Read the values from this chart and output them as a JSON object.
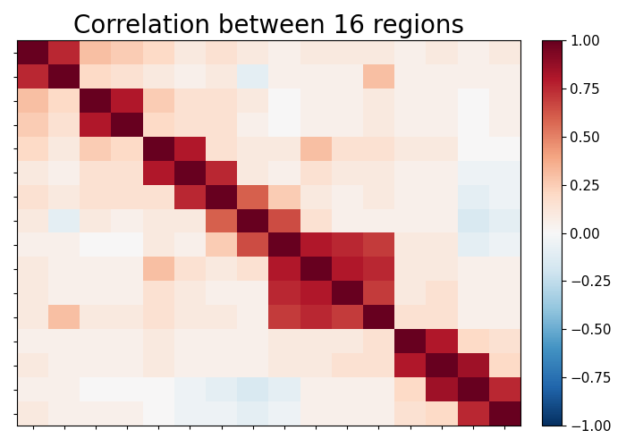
{
  "title": "Correlation between 16 regions",
  "title_fontsize": 20,
  "n_regions": 16,
  "cmap": "RdBu_r",
  "vmin": -1.0,
  "vmax": 1.0,
  "corr_matrix": [
    [
      1.0,
      0.75,
      0.3,
      0.25,
      0.2,
      0.1,
      0.15,
      0.1,
      0.05,
      0.1,
      0.1,
      0.1,
      0.05,
      0.1,
      0.05,
      0.1
    ],
    [
      0.75,
      1.0,
      0.2,
      0.15,
      0.1,
      0.05,
      0.1,
      -0.1,
      0.05,
      0.05,
      0.05,
      0.3,
      0.05,
      0.05,
      0.05,
      0.05
    ],
    [
      0.3,
      0.2,
      1.0,
      0.8,
      0.25,
      0.15,
      0.15,
      0.1,
      0.0,
      0.05,
      0.05,
      0.1,
      0.05,
      0.05,
      0.0,
      0.05
    ],
    [
      0.25,
      0.15,
      0.8,
      1.0,
      0.2,
      0.15,
      0.15,
      0.05,
      0.0,
      0.05,
      0.05,
      0.1,
      0.05,
      0.05,
      0.0,
      0.05
    ],
    [
      0.2,
      0.1,
      0.25,
      0.2,
      1.0,
      0.8,
      0.15,
      0.1,
      0.1,
      0.3,
      0.15,
      0.15,
      0.1,
      0.1,
      0.0,
      0.0
    ],
    [
      0.1,
      0.05,
      0.15,
      0.15,
      0.8,
      1.0,
      0.75,
      0.1,
      0.05,
      0.15,
      0.1,
      0.1,
      0.05,
      0.05,
      -0.05,
      -0.05
    ],
    [
      0.15,
      0.1,
      0.15,
      0.15,
      0.15,
      0.75,
      1.0,
      0.6,
      0.25,
      0.1,
      0.05,
      0.1,
      0.05,
      0.05,
      -0.1,
      -0.05
    ],
    [
      0.1,
      -0.1,
      0.1,
      0.05,
      0.1,
      0.1,
      0.6,
      1.0,
      0.65,
      0.15,
      0.05,
      0.05,
      0.05,
      0.05,
      -0.15,
      -0.1
    ],
    [
      0.05,
      0.05,
      0.0,
      0.0,
      0.1,
      0.05,
      0.25,
      0.65,
      1.0,
      0.8,
      0.75,
      0.7,
      0.1,
      0.1,
      -0.1,
      -0.05
    ],
    [
      0.1,
      0.05,
      0.05,
      0.05,
      0.3,
      0.15,
      0.1,
      0.15,
      0.8,
      1.0,
      0.8,
      0.75,
      0.1,
      0.1,
      0.05,
      0.05
    ],
    [
      0.1,
      0.05,
      0.05,
      0.05,
      0.15,
      0.1,
      0.05,
      0.05,
      0.75,
      0.8,
      1.0,
      0.7,
      0.1,
      0.15,
      0.05,
      0.05
    ],
    [
      0.1,
      0.3,
      0.1,
      0.1,
      0.15,
      0.1,
      0.1,
      0.05,
      0.7,
      0.75,
      0.7,
      1.0,
      0.15,
      0.15,
      0.05,
      0.05
    ],
    [
      0.05,
      0.05,
      0.05,
      0.05,
      0.1,
      0.05,
      0.05,
      0.05,
      0.1,
      0.1,
      0.1,
      0.15,
      1.0,
      0.8,
      0.2,
      0.15
    ],
    [
      0.1,
      0.05,
      0.05,
      0.05,
      0.1,
      0.05,
      0.05,
      0.05,
      0.1,
      0.1,
      0.15,
      0.15,
      0.8,
      1.0,
      0.85,
      0.2
    ],
    [
      0.05,
      0.05,
      0.0,
      0.0,
      0.0,
      -0.05,
      -0.1,
      -0.15,
      -0.1,
      0.05,
      0.05,
      0.05,
      0.2,
      0.85,
      1.0,
      0.75
    ],
    [
      0.1,
      0.05,
      0.05,
      0.05,
      0.0,
      -0.05,
      -0.05,
      -0.1,
      -0.05,
      0.05,
      0.05,
      0.05,
      0.15,
      0.2,
      0.75,
      1.0
    ]
  ],
  "figsize": [
    7.0,
    5.0
  ],
  "dpi": 100
}
